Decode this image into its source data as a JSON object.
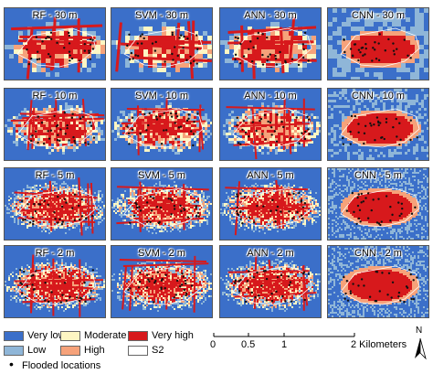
{
  "panels": [
    {
      "title": "RF - 30 m"
    },
    {
      "title": "SVM - 30 m"
    },
    {
      "title": "ANN - 30 m"
    },
    {
      "title": "CNN - 30 m"
    },
    {
      "title": "RF - 10 m"
    },
    {
      "title": "SVM - 10 m"
    },
    {
      "title": "ANN - 10 m"
    },
    {
      "title": "CNN - 10 m"
    },
    {
      "title": "RF - 5 m"
    },
    {
      "title": "SVM - 5 m"
    },
    {
      "title": "ANN - 5 m"
    },
    {
      "title": "CNN - 5 m"
    },
    {
      "title": "RF - 2 m"
    },
    {
      "title": "SVM - 2 m"
    },
    {
      "title": "ANN - 2 m"
    },
    {
      "title": "CNN - 2 m"
    }
  ],
  "legend": {
    "very_low": "Very low",
    "moderate": "Moderate",
    "very_high": "Very high",
    "low": "Low",
    "high": "High",
    "s2": "S2",
    "flooded": "Flooded locations"
  },
  "colors": {
    "very_low": "#3b6fc9",
    "low": "#8fb6d8",
    "moderate": "#fdf6c3",
    "high": "#f6a27a",
    "very_high": "#d7191c",
    "point": "#111111"
  },
  "scale_bar": {
    "ticks": [
      "0",
      "0.5",
      "1",
      "2 Kilometers"
    ]
  },
  "north_arrow": "N"
}
